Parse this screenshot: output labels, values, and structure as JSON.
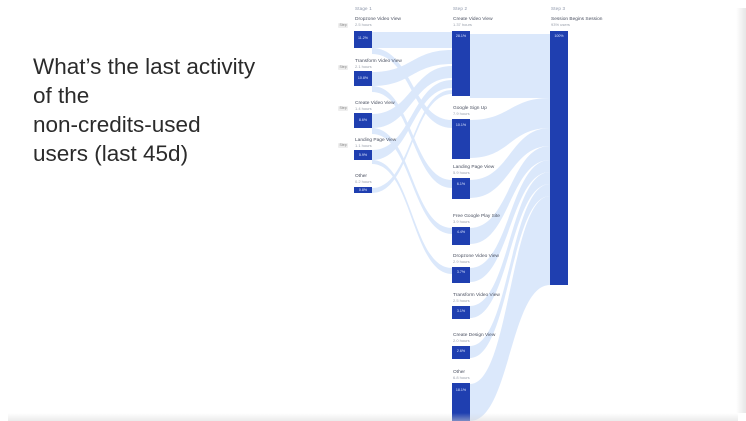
{
  "title_lines": [
    "What’s the last activity",
    "of the",
    "non-credits-used",
    "users (last 45d)"
  ],
  "stages": [
    "Stage 1",
    "Step 2",
    "Step 3"
  ],
  "step1": [
    {
      "name": "Dropzone Video View",
      "count": "2.5 hours",
      "pct": "11.2%",
      "tag": "Step"
    },
    {
      "name": "Transform Video View",
      "count": "2.1 hours",
      "pct": "10.8%",
      "tag": "Step"
    },
    {
      "name": "Create Video View",
      "count": "1.4 hours",
      "pct": "8.6%",
      "tag": "Step"
    },
    {
      "name": "Landing Page View",
      "count": "1.1 hours",
      "pct": "5.9%",
      "tag": "Step"
    },
    {
      "name": "Other",
      "count": "0.2 hours",
      "pct": "0.8%",
      "tag": ""
    }
  ],
  "step2": [
    {
      "name": "Create Video View",
      "count": "1.37 hours",
      "pct": "28.1%"
    },
    {
      "name": "Google Sign Up",
      "count": "7.9 hours",
      "pct": "10.1%"
    },
    {
      "name": "Landing Page View",
      "count": "5.9 hours",
      "pct": "6.1%"
    },
    {
      "name": "Free Google Play Site",
      "count": "3.9 hours",
      "pct": "4.4%"
    },
    {
      "name": "Dropzone Video View",
      "count": "2.9 hours",
      "pct": "3.7%"
    },
    {
      "name": "Transform Video View",
      "count": "2.5 hours",
      "pct": "3.1%"
    },
    {
      "name": "Create Design View",
      "count": "2.0 hours",
      "pct": "2.6%"
    },
    {
      "name": "Other",
      "count": "6.8 hours",
      "pct": "18.1%"
    }
  ],
  "step3": [
    {
      "name": "Session Begins Session",
      "count": "93% users",
      "pct": "100%"
    }
  ],
  "colors": {
    "node": "#1f3fb0",
    "link": "#dbe8fb",
    "text": "#2b2b2b"
  }
}
